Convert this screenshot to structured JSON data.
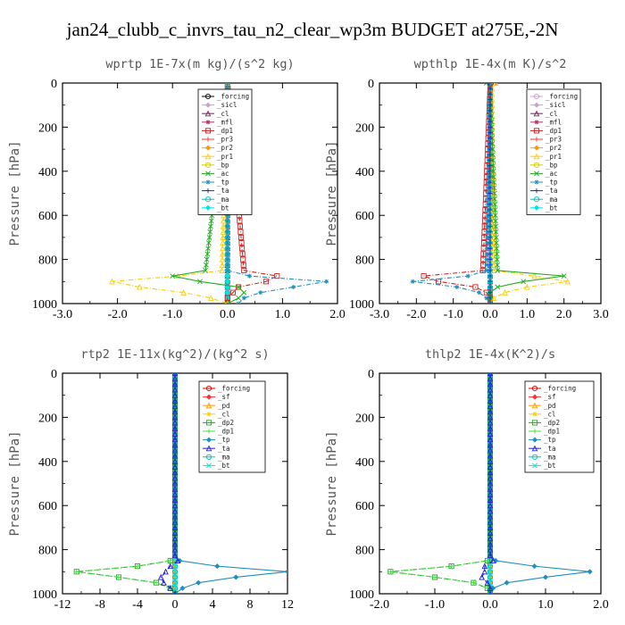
{
  "figure_title": "jan24_clubb_c_invrs_tau_n2_clear_wp3m  BUDGET at275E,-2N",
  "chart_data": [
    {
      "type": "line",
      "title": "wprtp  1E-7x(m kg)/(s^2 kg)",
      "ylabel": "Pressure [hPa]",
      "xlim": [
        -3,
        2
      ],
      "ylim": [
        1000,
        0
      ],
      "xticks": [
        -3,
        -2,
        -1,
        0,
        1,
        2
      ],
      "xtick_labels": [
        "-3.0",
        "-2.0",
        "-1.0",
        "0.0",
        "1.0",
        "2.0"
      ],
      "yticks": [
        0,
        200,
        400,
        600,
        800,
        1000
      ],
      "legend_position": "top-right",
      "pressure": [
        0,
        850,
        875,
        900,
        925,
        950,
        975,
        1000
      ],
      "series": [
        {
          "name": "_forcing",
          "color": "#000000",
          "values": [
            0,
            0,
            0,
            0,
            0,
            0,
            0,
            0
          ]
        },
        {
          "name": "_sicl",
          "color": "#c8a2c8",
          "values": [
            0,
            0,
            0,
            0,
            0,
            0,
            0,
            0
          ]
        },
        {
          "name": "_cl",
          "color": "#8b1a5a",
          "values": [
            0,
            0,
            0,
            0,
            0,
            0,
            0,
            0
          ]
        },
        {
          "name": "_mfl",
          "color": "#b03060",
          "values": [
            0,
            0,
            0,
            0,
            0,
            0,
            0,
            0
          ]
        },
        {
          "name": "_dp1",
          "color": "#cc2222",
          "values": [
            0,
            0.3,
            0.9,
            0.7,
            0.2,
            0.1,
            0,
            0
          ]
        },
        {
          "name": "_pr3",
          "color": "#ff3030",
          "values": [
            0,
            0,
            0,
            0,
            0,
            0,
            0,
            0
          ]
        },
        {
          "name": "_pr2",
          "color": "#ff9900",
          "values": [
            0,
            0,
            0,
            0,
            0,
            0,
            0,
            0
          ]
        },
        {
          "name": "_pr1",
          "color": "#ffcc00",
          "values": [
            0,
            -0.1,
            -0.9,
            -2.1,
            -1.6,
            -0.8,
            -0.3,
            0
          ]
        },
        {
          "name": "_bp",
          "color": "#cccc00",
          "values": [
            0,
            0,
            0,
            0,
            0,
            0,
            0,
            0
          ]
        },
        {
          "name": "_ac",
          "color": "#22aa22",
          "values": [
            0,
            -0.4,
            -1.0,
            -0.5,
            0.2,
            0.3,
            0.2,
            0
          ]
        },
        {
          "name": "_tp",
          "color": "#1f8fbf",
          "values": [
            0,
            0,
            0.4,
            1.8,
            1.2,
            0.6,
            0.3,
            0.2
          ]
        },
        {
          "name": "_ta",
          "color": "#2222cc",
          "values": [
            0,
            0,
            0,
            0,
            0,
            0,
            0,
            0
          ]
        },
        {
          "name": "_ma",
          "color": "#00bbbb",
          "values": [
            0,
            0,
            0,
            0,
            0,
            0,
            0,
            0
          ]
        },
        {
          "name": "_bt",
          "color": "#00e5e5",
          "values": [
            0,
            0,
            0,
            0,
            0,
            0,
            0,
            0
          ]
        }
      ]
    },
    {
      "type": "line",
      "title": "wpthlp  1E-4x(m K)/s^2",
      "ylabel": "Pressure [hPa]",
      "xlim": [
        -3,
        3
      ],
      "ylim": [
        1000,
        0
      ],
      "xticks": [
        -3,
        -2,
        -1,
        0,
        1,
        2,
        3
      ],
      "xtick_labels": [
        "-3.0",
        "-2.0",
        "-1.0",
        "0.0",
        "1.0",
        "2.0",
        "3.0"
      ],
      "yticks": [
        0,
        200,
        400,
        600,
        800,
        1000
      ],
      "legend_position": "top-right",
      "pressure": [
        0,
        25,
        850,
        875,
        900,
        925,
        950,
        975,
        1000
      ],
      "series": [
        {
          "name": "_forcing",
          "color": "#c8a2c8",
          "values": [
            0,
            0,
            0,
            0,
            0,
            0,
            0,
            0,
            0
          ]
        },
        {
          "name": "_sicl",
          "color": "#c8a2c8",
          "values": [
            0,
            0,
            0,
            0,
            0,
            0,
            0,
            0,
            0
          ]
        },
        {
          "name": "_cl",
          "color": "#8b1a5a",
          "values": [
            0,
            0,
            0,
            0,
            0,
            0,
            0,
            0,
            0
          ]
        },
        {
          "name": "_mfl",
          "color": "#b03060",
          "values": [
            0,
            0,
            0,
            0,
            0,
            0,
            0,
            0,
            0
          ]
        },
        {
          "name": "_dp1",
          "color": "#cc2222",
          "values": [
            0.1,
            0,
            -0.2,
            -1.8,
            -1.4,
            -0.4,
            -0.1,
            0,
            0
          ]
        },
        {
          "name": "_pr3",
          "color": "#ff3030",
          "values": [
            0,
            0,
            0,
            0,
            0,
            0,
            0,
            0,
            0
          ]
        },
        {
          "name": "_pr2",
          "color": "#ff9900",
          "values": [
            0,
            0,
            0,
            0,
            0,
            0,
            0,
            0,
            0
          ]
        },
        {
          "name": "_pr1",
          "color": "#ffcc00",
          "values": [
            0.15,
            0.05,
            0.1,
            1.2,
            2.1,
            1.0,
            0.4,
            0.1,
            0
          ]
        },
        {
          "name": "_bp",
          "color": "#cccc00",
          "values": [
            0,
            0,
            0,
            0,
            0,
            0,
            0,
            0,
            0
          ]
        },
        {
          "name": "_ac",
          "color": "#22aa22",
          "values": [
            -0.1,
            0,
            0.2,
            2.0,
            0.9,
            0.2,
            0,
            0,
            0
          ]
        },
        {
          "name": "_tp",
          "color": "#1f8fbf",
          "values": [
            0,
            0,
            -0.1,
            -0.6,
            -2.1,
            -0.9,
            -0.3,
            -0.1,
            0
          ]
        },
        {
          "name": "_ta",
          "color": "#2222cc",
          "values": [
            -0.05,
            0,
            0,
            0,
            0,
            0,
            0,
            0,
            0
          ]
        },
        {
          "name": "_ma",
          "color": "#00bbbb",
          "values": [
            0,
            0,
            0,
            0,
            0,
            0,
            0,
            0,
            0
          ]
        },
        {
          "name": "_bt",
          "color": "#00e5e5",
          "values": [
            0,
            0,
            0,
            0,
            0,
            0,
            0,
            0,
            0
          ]
        }
      ]
    },
    {
      "type": "line",
      "title": "rtp2  1E-11x(kg^2)/(kg^2 s)",
      "ylabel": "Pressure [hPa]",
      "xlim": [
        -12,
        12
      ],
      "ylim": [
        1000,
        0
      ],
      "xticks": [
        -12,
        -8,
        -4,
        0,
        4,
        8,
        12
      ],
      "xtick_labels": [
        "-12",
        "-8",
        "-4",
        "0",
        "4",
        "8",
        "12"
      ],
      "yticks": [
        0,
        200,
        400,
        600,
        800,
        1000
      ],
      "legend_position": "top-right",
      "pressure": [
        0,
        825,
        850,
        875,
        900,
        925,
        950,
        975,
        1000
      ],
      "series": [
        {
          "name": "_forcing",
          "color": "#cc0000",
          "values": [
            0,
            0,
            0,
            0,
            0,
            0,
            0,
            0,
            0
          ]
        },
        {
          "name": "_sf",
          "color": "#ff3030",
          "values": [
            0,
            0,
            0,
            0,
            0,
            0,
            0,
            0,
            0
          ]
        },
        {
          "name": "_pd",
          "color": "#ff9900",
          "values": [
            0,
            0,
            0,
            0,
            0,
            0,
            0,
            0,
            0
          ]
        },
        {
          "name": "_cl",
          "color": "#ffcc00",
          "values": [
            0,
            0,
            0,
            0,
            0,
            0,
            0,
            0,
            0
          ]
        },
        {
          "name": "_dp2",
          "color": "#22aa22",
          "values": [
            0,
            0,
            -0.5,
            -4.0,
            -10.5,
            -6.0,
            -2.0,
            -0.5,
            0
          ]
        },
        {
          "name": "_dp1",
          "color": "#44dd44",
          "values": [
            0,
            0,
            -0.5,
            -4.0,
            -10.5,
            -6.0,
            -2.0,
            -0.5,
            0
          ]
        },
        {
          "name": "_tp",
          "color": "#1f8fbf",
          "values": [
            0,
            0,
            0.5,
            4.5,
            12.0,
            6.5,
            2.5,
            0.8,
            0
          ]
        },
        {
          "name": "_ta",
          "color": "#2222cc",
          "values": [
            0,
            0,
            0.3,
            -0.5,
            -1.0,
            -1.5,
            -1.2,
            -0.5,
            0
          ]
        },
        {
          "name": "_ma",
          "color": "#00bbbb",
          "values": [
            0,
            0,
            0,
            0,
            0,
            0,
            0,
            0,
            0
          ]
        },
        {
          "name": "_bt",
          "color": "#00e5e5",
          "values": [
            0,
            0,
            0,
            0,
            0,
            0,
            0,
            0,
            0
          ]
        }
      ]
    },
    {
      "type": "line",
      "title": "thlp2  1E-4x(K^2)/s",
      "ylabel": "Pressure [hPa]",
      "xlim": [
        -2,
        2
      ],
      "ylim": [
        1000,
        0
      ],
      "xticks": [
        -2,
        -1,
        0,
        1,
        2
      ],
      "xtick_labels": [
        "-2.0",
        "-1.0",
        "0.0",
        "1.0",
        "2.0"
      ],
      "yticks": [
        0,
        200,
        400,
        600,
        800,
        1000
      ],
      "legend_position": "top-right",
      "pressure": [
        0,
        825,
        850,
        875,
        900,
        925,
        950,
        975,
        1000
      ],
      "series": [
        {
          "name": "_forcing",
          "color": "#cc0000",
          "values": [
            0,
            0,
            0,
            0,
            0,
            0,
            0,
            0,
            0
          ]
        },
        {
          "name": "_sf",
          "color": "#ff3030",
          "values": [
            0,
            0,
            0,
            0,
            0,
            0,
            0,
            0,
            0
          ]
        },
        {
          "name": "_pd",
          "color": "#ff9900",
          "values": [
            0,
            0,
            0,
            0,
            0,
            0,
            0,
            0,
            0
          ]
        },
        {
          "name": "_cl",
          "color": "#ffcc00",
          "values": [
            0,
            0,
            0,
            0,
            0,
            0,
            0,
            0,
            0
          ]
        },
        {
          "name": "_dp2",
          "color": "#22aa22",
          "values": [
            0,
            0,
            -0.05,
            -0.7,
            -1.8,
            -1.0,
            -0.3,
            -0.05,
            0
          ]
        },
        {
          "name": "_dp1",
          "color": "#44dd44",
          "values": [
            0,
            0,
            -0.05,
            -0.7,
            -1.8,
            -1.0,
            -0.3,
            -0.05,
            0
          ]
        },
        {
          "name": "_tp",
          "color": "#1f8fbf",
          "values": [
            0,
            0,
            0.1,
            0.8,
            1.8,
            1.0,
            0.3,
            0.05,
            0
          ]
        },
        {
          "name": "_ta",
          "color": "#2222cc",
          "values": [
            0,
            0,
            0.05,
            -0.1,
            -0.1,
            -0.15,
            -0.05,
            0,
            0
          ]
        },
        {
          "name": "_ma",
          "color": "#00bbbb",
          "values": [
            0,
            0,
            0,
            0,
            0,
            0,
            0,
            0,
            0
          ]
        },
        {
          "name": "_bt",
          "color": "#00e5e5",
          "values": [
            0,
            0,
            0,
            0,
            0,
            0,
            0,
            0,
            0
          ]
        }
      ]
    }
  ]
}
